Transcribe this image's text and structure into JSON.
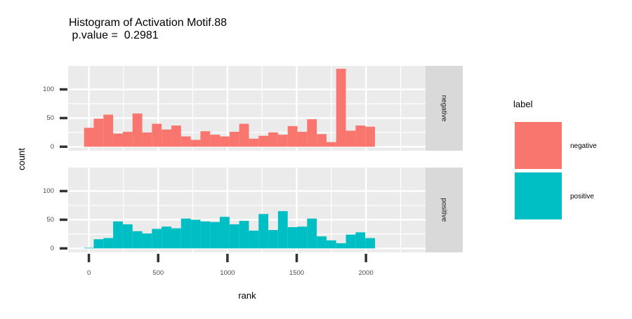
{
  "title": "Histogram of Activation Motif.88",
  "subtitle": " p.value =  0.2981",
  "colors": {
    "panel_bg": "#EBEBEB",
    "grid": "#FFFFFF",
    "strip_bg": "#D9D9D9",
    "tick": "#333333",
    "text": "#000000",
    "tick_text": "#4D4D4D"
  },
  "chart_data": {
    "type": "bar",
    "subtype": "faceted-histogram",
    "xlabel": "rank",
    "ylabel": "count",
    "xlim": [
      -150,
      2430
    ],
    "ylim": [
      -7,
      141
    ],
    "x_ticks": [
      0,
      500,
      1000,
      1500,
      2000
    ],
    "x_tick_labels": [
      "0",
      "500",
      "1000",
      "1500",
      "2000"
    ],
    "y_ticks": [
      0,
      50,
      100
    ],
    "y_tick_labels": [
      "0",
      "50",
      "100"
    ],
    "bin_start": -35,
    "bin_width": 70,
    "grid": true,
    "legend_position": "right",
    "legend_title": "label",
    "series": [
      {
        "name": "negative",
        "color": "#F8766D",
        "values": [
          33,
          49,
          56,
          23,
          26,
          58,
          25,
          40,
          30,
          37,
          18,
          12,
          27,
          21,
          18,
          26,
          40,
          14,
          19,
          25,
          21,
          36,
          26,
          48,
          22,
          8,
          136,
          28,
          37,
          35
        ]
      },
      {
        "name": "positive",
        "color": "#00BFC4",
        "values": [
          1,
          16,
          18,
          47,
          42,
          30,
          26,
          34,
          38,
          35,
          52,
          50,
          47,
          46,
          55,
          42,
          48,
          31,
          60,
          32,
          65,
          37,
          38,
          52,
          21,
          14,
          9,
          24,
          28,
          18
        ]
      }
    ]
  }
}
